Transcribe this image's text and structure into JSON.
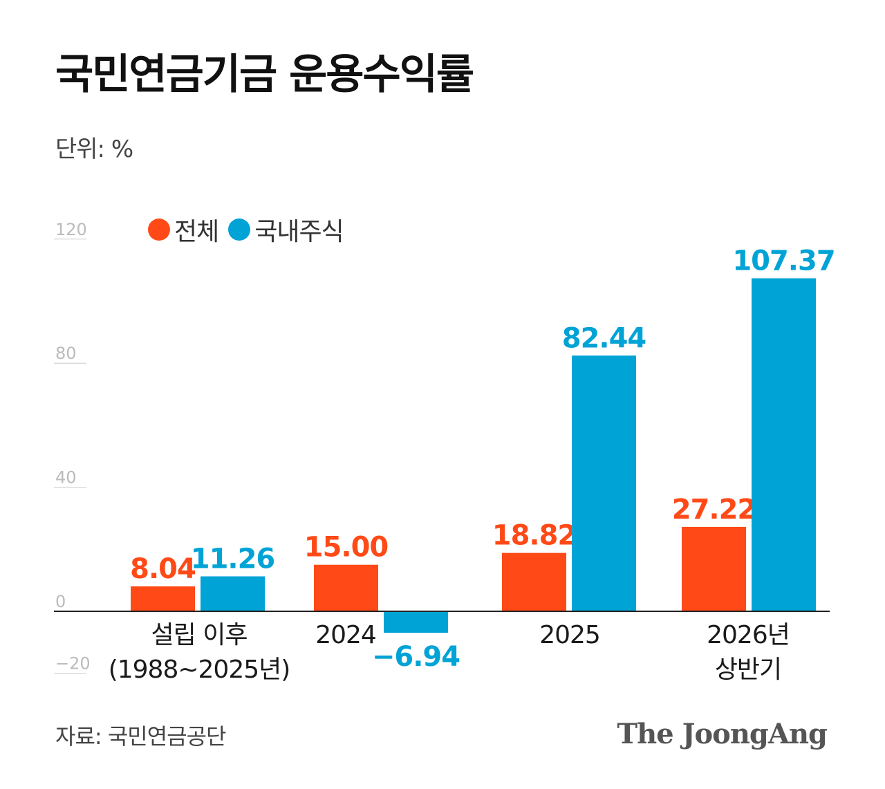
{
  "title": "국민연금기금 운용수익률",
  "unit_label": "단위: %",
  "source": "자료: 국민연금공단",
  "brand": "The JoongAng",
  "colors": {
    "total": "#ff4a17",
    "domestic_stock": "#00a3d5",
    "axis": "#222222",
    "grid": "#cccccc",
    "tick": "#bbbbbb"
  },
  "chart_data": {
    "type": "bar",
    "title": "국민연금기금 운용수익률",
    "unit": "%",
    "categories": [
      [
        "설립 이후",
        "(1988~2025년)"
      ],
      [
        "2024"
      ],
      [
        "2025"
      ],
      [
        "2026년",
        "상반기"
      ]
    ],
    "series": [
      {
        "name": "전체",
        "values": [
          8.04,
          15.0,
          18.82,
          27.22
        ],
        "labels": [
          "8.04",
          "15.00",
          "18.82",
          "27.22"
        ]
      },
      {
        "name": "국내주식",
        "values": [
          11.26,
          -6.94,
          82.44,
          107.37
        ],
        "labels": [
          "11.26",
          "−6.94",
          "82.44",
          "107.37"
        ]
      }
    ],
    "yticks": [
      {
        "value": 120,
        "label": "120"
      },
      {
        "value": 80,
        "label": "80"
      },
      {
        "value": 40,
        "label": "40"
      },
      {
        "value": 0,
        "label": "0"
      },
      {
        "value": -20,
        "label": "−20"
      }
    ],
    "ylim": [
      -20,
      120
    ],
    "legend_position": "top-left"
  }
}
